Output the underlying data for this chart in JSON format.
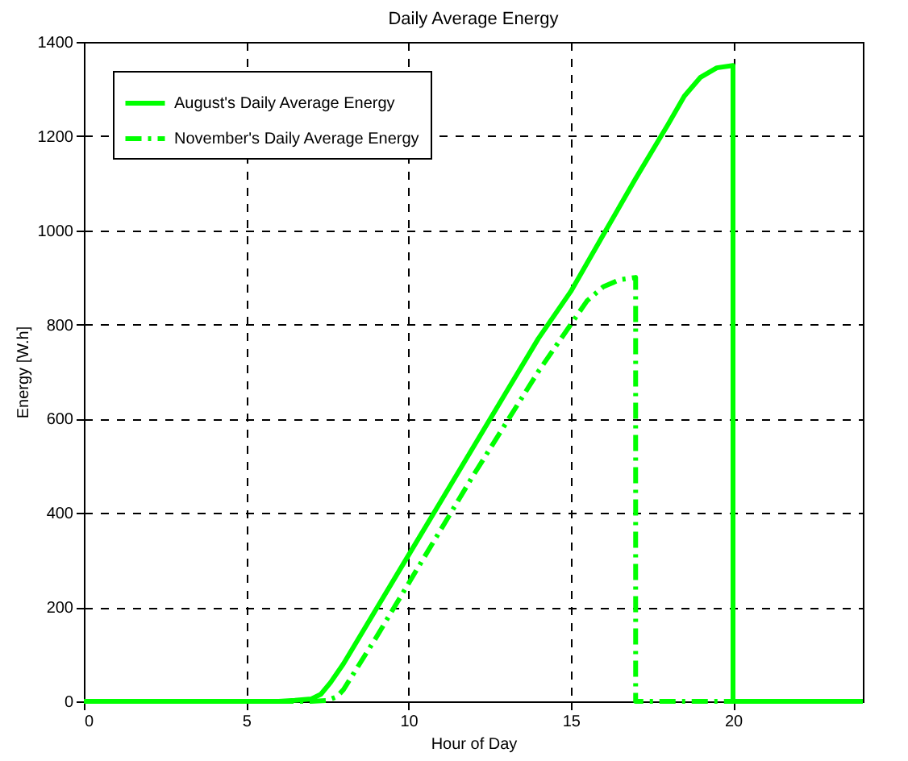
{
  "chart_data": {
    "type": "line",
    "title": "Daily Average Energy",
    "xlabel": "Hour of Day",
    "ylabel": "Energy [W.h]",
    "xlim": [
      0,
      24
    ],
    "xticks": [
      0,
      5,
      10,
      15,
      20
    ],
    "ylim": [
      0,
      1400
    ],
    "yticks": [
      0,
      200,
      400,
      600,
      800,
      1000,
      1200,
      1400
    ],
    "grid": true,
    "legend": "top left",
    "marker": "none",
    "series": [
      {
        "name": "August's Daily Average Energy",
        "color": "#00ff00",
        "line_style": "solid",
        "x": [
          0,
          6,
          6.5,
          7,
          7.3,
          7.6,
          8,
          9,
          10,
          11,
          12,
          13,
          14,
          15,
          16,
          17,
          18,
          18.5,
          19,
          19.5,
          20,
          20,
          24
        ],
        "values": [
          0,
          0,
          2,
          5,
          15,
          40,
          80,
          195,
          310,
          425,
          540,
          655,
          770,
          870,
          990,
          1110,
          1225,
          1285,
          1325,
          1345,
          1350,
          0,
          0
        ]
      },
      {
        "name": "November's Daily Average Energy",
        "color": "#00ff00",
        "line_style": "dashed",
        "x": [
          0,
          7,
          7.5,
          7.8,
          8,
          9,
          10,
          11,
          12,
          13,
          14,
          15,
          15.5,
          16,
          16.5,
          17,
          17,
          24
        ],
        "values": [
          0,
          0,
          2,
          10,
          25,
          135,
          250,
          365,
          480,
          590,
          700,
          800,
          850,
          880,
          895,
          900,
          0,
          0
        ]
      }
    ]
  }
}
